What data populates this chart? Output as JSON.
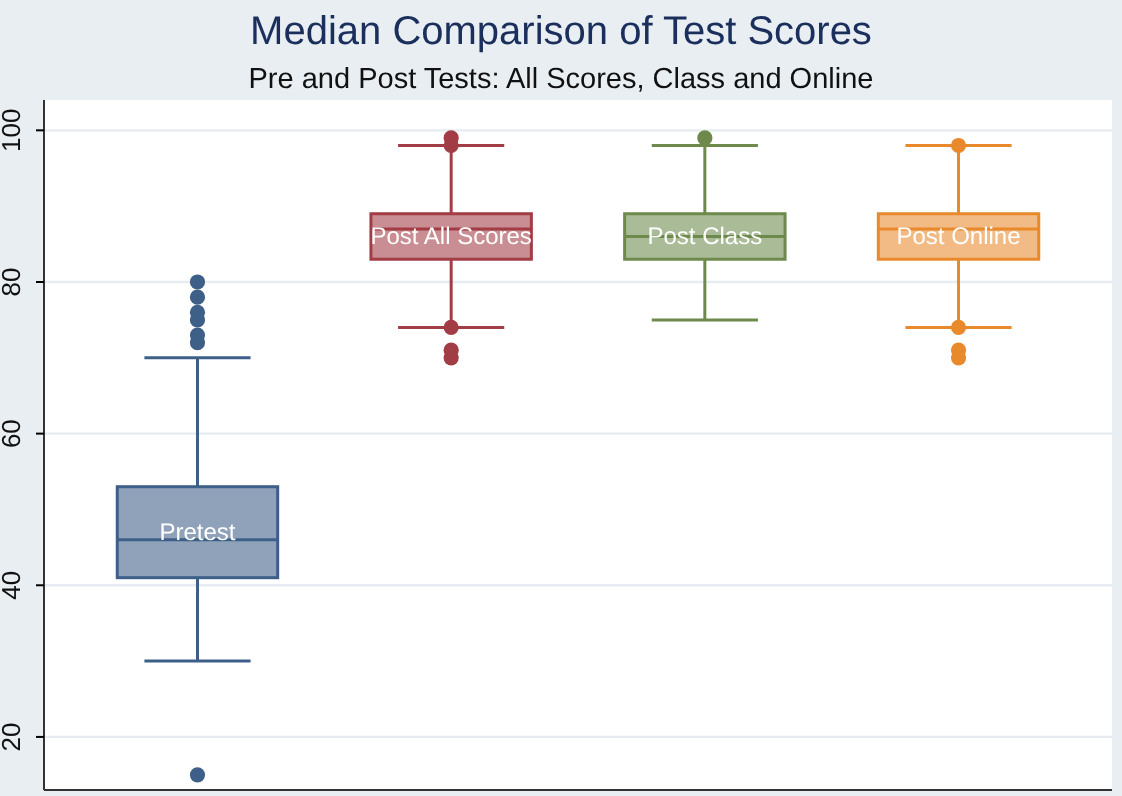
{
  "chart_data": {
    "type": "box",
    "title": "Median Comparison of Test Scores",
    "subtitle": "Pre and Post Tests: All Scores, Class and Online",
    "categories": [
      "Pretest",
      "Post All Scores",
      "Post Class",
      "Post Online"
    ],
    "colors": [
      "#3e5f87",
      "#a23d45",
      "#6d8a4c",
      "#e8892c"
    ],
    "boxes": [
      {
        "low": 30,
        "q1": 41,
        "median": 46,
        "q3": 53,
        "high": 70,
        "outliers": [
          15,
          72,
          73,
          75,
          76,
          78,
          80
        ]
      },
      {
        "low": 74,
        "q1": 83,
        "median": 87,
        "q3": 89,
        "high": 98,
        "outliers": [
          70,
          71,
          74,
          98,
          99
        ]
      },
      {
        "low": 75,
        "q1": 83,
        "median": 86,
        "q3": 89,
        "high": 98,
        "outliers": [
          99
        ]
      },
      {
        "low": 74,
        "q1": 83,
        "median": 87,
        "q3": 89,
        "high": 98,
        "outliers": [
          70,
          71,
          74,
          98
        ]
      }
    ],
    "ylim": [
      13,
      104
    ],
    "yticks": [
      20,
      40,
      60,
      80,
      100
    ],
    "grid": "y"
  }
}
